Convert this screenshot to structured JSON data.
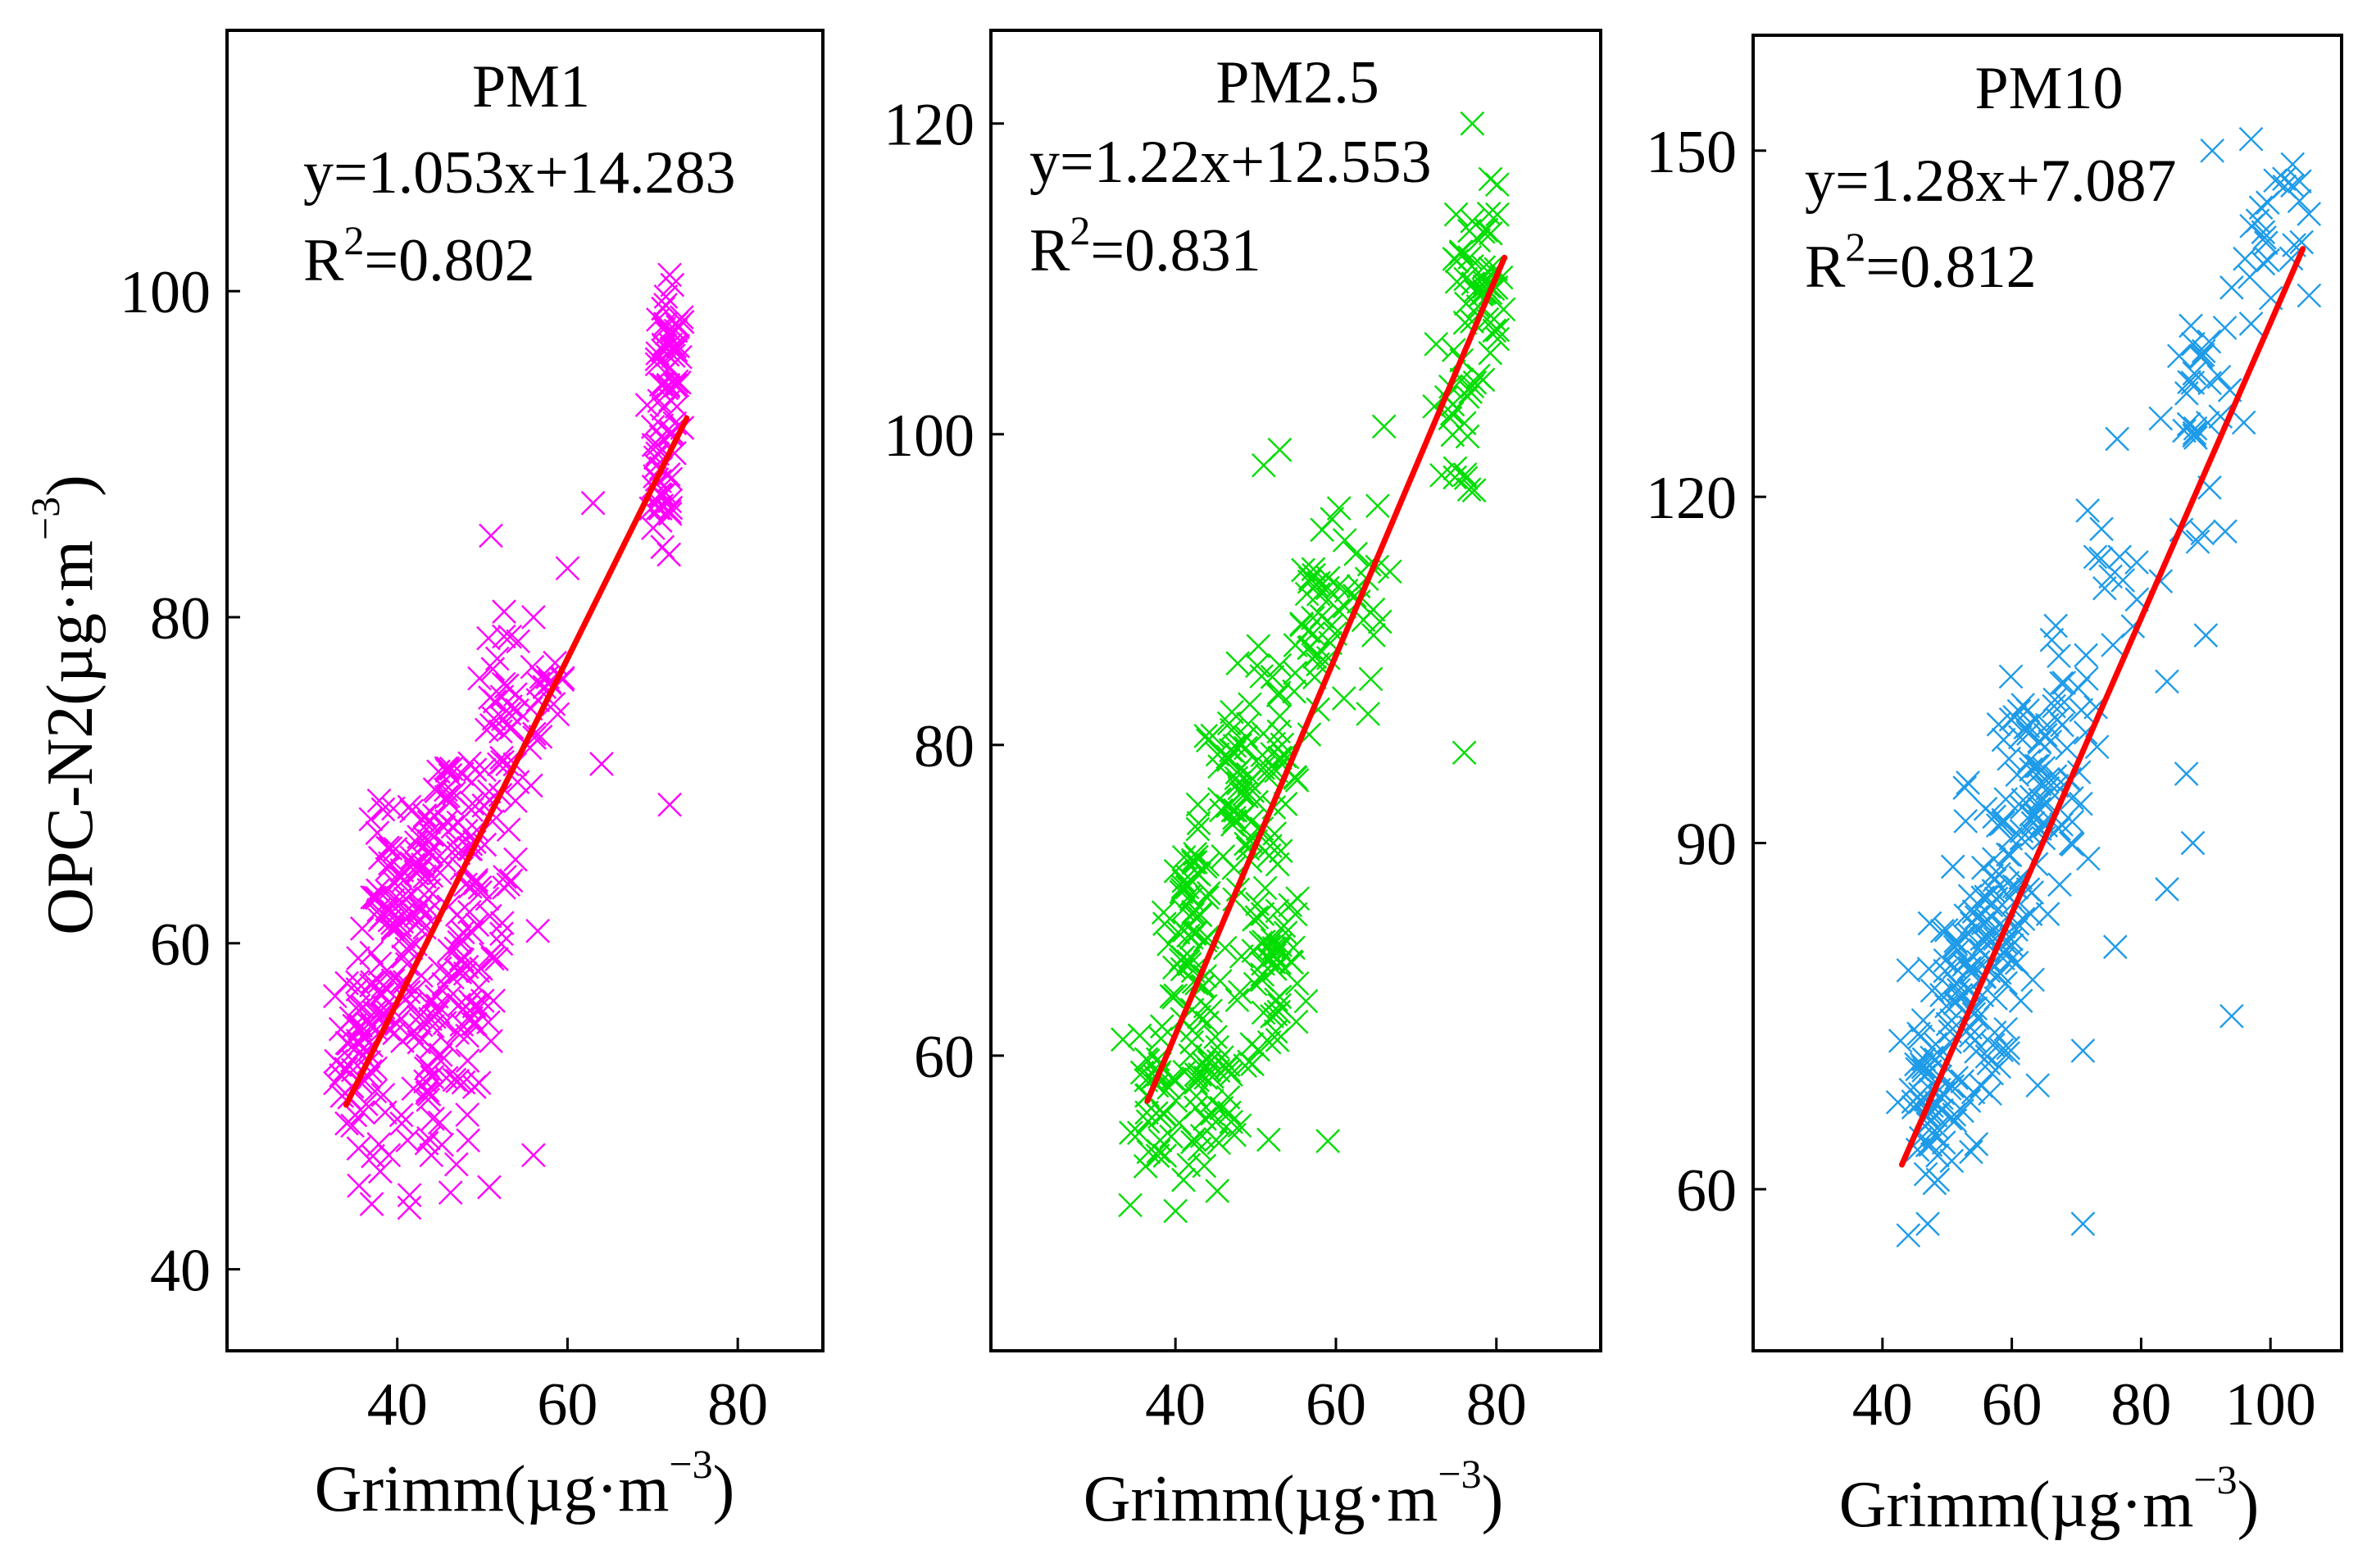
{
  "figure": {
    "shared_xlabel": {
      "main": "Grimm(µg·m",
      "sup": "−3",
      "close": ")"
    },
    "shared_ylabel": {
      "main": "OPC-N2(µg·m",
      "sup": "−3",
      "close": ")"
    },
    "r2_prefix": "R",
    "r2_sup": "2"
  },
  "chart_data": [
    {
      "type": "scatter",
      "title": "PM1",
      "equation": "y=1.053x+14.283",
      "r2_value": "=0.802",
      "xlabel": "Grimm(µg·m−3)",
      "ylabel": "OPC-N2(µg·m−3)",
      "xlim": [
        20,
        90
      ],
      "ylim": [
        35,
        116
      ],
      "xticks": [
        40,
        60,
        80
      ],
      "xtick_labels": [
        "40",
        "60",
        "80"
      ],
      "yticks": [
        40,
        60,
        80,
        100
      ],
      "ytick_labels": [
        "40",
        "60",
        "80",
        "100"
      ],
      "point_color": "#ff00ff",
      "fit": {
        "slope": 1.053,
        "intercept": 14.283,
        "x_range": [
          34,
          74
        ],
        "color": "#ff0000"
      },
      "clusters": [
        {
          "cx": 36,
          "cy": 53,
          "sx": 1.6,
          "sy": 3.0,
          "n": 55
        },
        {
          "cx": 39,
          "cy": 60,
          "sx": 1.8,
          "sy": 3.5,
          "n": 55
        },
        {
          "cx": 42,
          "cy": 65,
          "sx": 1.6,
          "sy": 3.0,
          "n": 40
        },
        {
          "cx": 44,
          "cy": 53,
          "sx": 2.5,
          "sy": 4.0,
          "n": 55
        },
        {
          "cx": 46,
          "cy": 69,
          "sx": 1.5,
          "sy": 2.0,
          "n": 25
        },
        {
          "cx": 49,
          "cy": 60,
          "sx": 2.0,
          "sy": 4.0,
          "n": 65
        },
        {
          "cx": 52,
          "cy": 71,
          "sx": 2.0,
          "sy": 4.0,
          "n": 45
        },
        {
          "cx": 57,
          "cy": 76,
          "sx": 2.0,
          "sy": 3.0,
          "n": 20
        },
        {
          "cx": 71,
          "cy": 88,
          "sx": 1.0,
          "sy": 2.5,
          "n": 35
        },
        {
          "cx": 72,
          "cy": 95,
          "sx": 1.0,
          "sy": 2.2,
          "n": 45
        }
      ],
      "outliers": [
        [
          37,
          44
        ],
        [
          38,
          46
        ],
        [
          39,
          47
        ],
        [
          44,
          47
        ],
        [
          45,
          49
        ],
        [
          56,
          47
        ],
        [
          72,
          68.5
        ],
        [
          64,
          71
        ],
        [
          63,
          87
        ],
        [
          51,
          85
        ],
        [
          56,
          80
        ],
        [
          60,
          83
        ],
        [
          51,
          54
        ],
        [
          72,
          101
        ]
      ]
    },
    {
      "type": "scatter",
      "title": "PM2.5",
      "equation": "y=1.22x+12.553",
      "r2_value": "=0.831",
      "xlabel": "Grimm(µg·m−3)",
      "ylabel": "",
      "xlim": [
        17,
        93
      ],
      "ylim": [
        41,
        126
      ],
      "xticks": [
        40,
        60,
        80
      ],
      "xtick_labels": [
        "40",
        "60",
        "80"
      ],
      "yticks": [
        60,
        80,
        100,
        120
      ],
      "ytick_labels": [
        "60",
        "80",
        "100",
        "120"
      ],
      "point_color": "#00dd00",
      "fit": {
        "slope": 1.22,
        "intercept": 12.553,
        "x_range": [
          36.5,
          81
        ],
        "color": "#ff0000"
      },
      "clusters": [
        {
          "cx": 38,
          "cy": 58,
          "sx": 1.6,
          "sy": 3.0,
          "n": 40
        },
        {
          "cx": 42,
          "cy": 69,
          "sx": 1.5,
          "sy": 2.5,
          "n": 55
        },
        {
          "cx": 44,
          "cy": 58,
          "sx": 2.0,
          "sy": 3.0,
          "n": 50
        },
        {
          "cx": 48,
          "cy": 76,
          "sx": 2.5,
          "sy": 4.0,
          "n": 55
        },
        {
          "cx": 52,
          "cy": 66,
          "sx": 2.0,
          "sy": 4.0,
          "n": 55
        },
        {
          "cx": 53,
          "cy": 82,
          "sx": 2.0,
          "sy": 3.0,
          "n": 35
        },
        {
          "cx": 57,
          "cy": 88,
          "sx": 2.0,
          "sy": 2.5,
          "n": 30
        },
        {
          "cx": 62,
          "cy": 90,
          "sx": 2.0,
          "sy": 3.0,
          "n": 20
        },
        {
          "cx": 75,
          "cy": 101,
          "sx": 1.5,
          "sy": 2.5,
          "n": 25
        },
        {
          "cx": 78,
          "cy": 110,
          "sx": 1.5,
          "sy": 3.0,
          "n": 50
        }
      ],
      "outliers": [
        [
          40,
          50
        ],
        [
          41,
          52
        ],
        [
          43,
          54
        ],
        [
          59,
          54.5
        ],
        [
          76,
          79.5
        ],
        [
          53,
          99
        ],
        [
          51,
          98
        ],
        [
          66,
          100.5
        ],
        [
          77,
          120
        ],
        [
          61,
          83
        ],
        [
          64,
          82
        ],
        [
          48,
          55.5
        ]
      ]
    },
    {
      "type": "scatter",
      "title": "PM10",
      "equation": "y=1.28x+7.087",
      "r2_value": "=0.812",
      "xlabel": "Grimm(µg·m−3)",
      "ylabel": "",
      "xlim": [
        20,
        111
      ],
      "ylim": [
        46,
        160
      ],
      "xticks": [
        40,
        60,
        80,
        100
      ],
      "xtick_labels": [
        "40",
        "60",
        "80",
        "100"
      ],
      "yticks": [
        60,
        90,
        120,
        150
      ],
      "ytick_labels": [
        "60",
        "90",
        "120",
        "150"
      ],
      "point_color": "#1e9be8",
      "fit": {
        "slope": 1.28,
        "intercept": 7.087,
        "x_range": [
          43,
          105
        ],
        "color": "#ff0000"
      },
      "clusters": [
        {
          "cx": 48,
          "cy": 67,
          "sx": 2.5,
          "sy": 4.0,
          "n": 55
        },
        {
          "cx": 53,
          "cy": 77,
          "sx": 3.0,
          "sy": 5.0,
          "n": 75
        },
        {
          "cx": 58,
          "cy": 84,
          "sx": 3.0,
          "sy": 5.0,
          "n": 55
        },
        {
          "cx": 64,
          "cy": 94,
          "sx": 3.0,
          "sy": 5.0,
          "n": 55
        },
        {
          "cx": 68,
          "cy": 100,
          "sx": 3.0,
          "sy": 4.0,
          "n": 30
        },
        {
          "cx": 77,
          "cy": 113,
          "sx": 3.0,
          "sy": 5.0,
          "n": 15
        },
        {
          "cx": 89,
          "cy": 128,
          "sx": 2.5,
          "sy": 5.0,
          "n": 30
        },
        {
          "cx": 100,
          "cy": 143,
          "sx": 3.0,
          "sy": 4.0,
          "n": 25
        }
      ],
      "outliers": [
        [
          44,
          56
        ],
        [
          47,
          57
        ],
        [
          71,
          57
        ],
        [
          94,
          75
        ],
        [
          71,
          72
        ],
        [
          90,
          108
        ],
        [
          87,
          96
        ],
        [
          88,
          90
        ],
        [
          84,
          86
        ],
        [
          76,
          81
        ],
        [
          64,
          69
        ],
        [
          84,
          104
        ],
        [
          93,
          117
        ],
        [
          91,
          150
        ],
        [
          97,
          151
        ],
        [
          97,
          135
        ]
      ]
    }
  ]
}
